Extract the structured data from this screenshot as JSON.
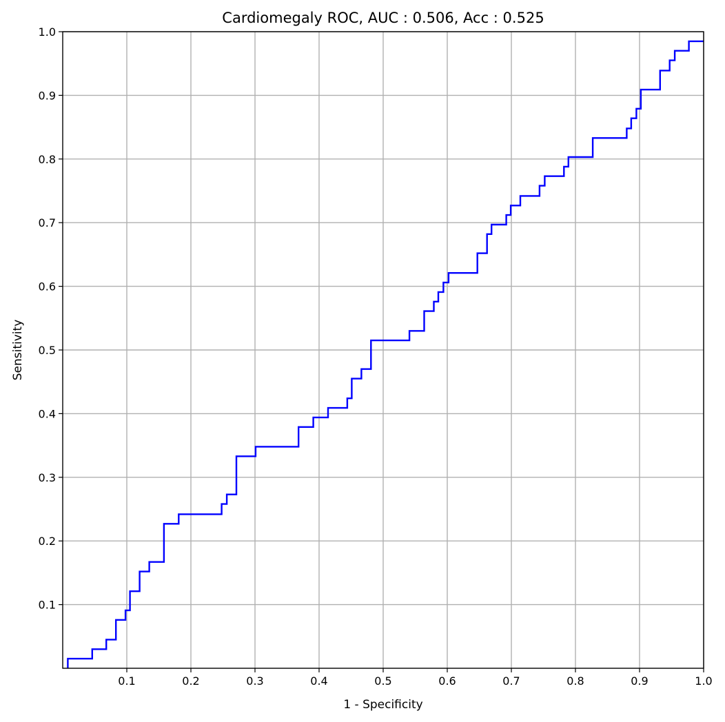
{
  "chart_data": {
    "type": "line",
    "title": "Cardiomegaly ROC, AUC : 0.506, Acc : 0.525",
    "xlabel": "1 - Specificity",
    "ylabel": "Sensitivity",
    "xlim": [
      0,
      1
    ],
    "ylim": [
      0,
      1
    ],
    "x_ticks": [
      0.1,
      0.2,
      0.3,
      0.4,
      0.5,
      0.6,
      0.7,
      0.8,
      0.9,
      1.0
    ],
    "x_tick_labels": [
      "0.1",
      "0.2",
      "0.3",
      "0.4",
      "0.5",
      "0.6",
      "0.7",
      "0.8",
      "0.9",
      "1.0"
    ],
    "y_ticks": [
      0.1,
      0.2,
      0.3,
      0.4,
      0.5,
      0.6,
      0.7,
      0.8,
      0.9,
      1.0
    ],
    "y_tick_labels": [
      "0.1",
      "0.2",
      "0.3",
      "0.4",
      "0.5",
      "0.6",
      "0.7",
      "0.8",
      "0.9",
      "1.0"
    ],
    "grid": true,
    "series": [
      {
        "color": "#0000ff",
        "step": true,
        "x": [
          0.008,
          0.008,
          0.046,
          0.046,
          0.068,
          0.068,
          0.083,
          0.083,
          0.098,
          0.098,
          0.105,
          0.105,
          0.12,
          0.12,
          0.135,
          0.135,
          0.158,
          0.158,
          0.181,
          0.181,
          0.248,
          0.248,
          0.256,
          0.256,
          0.271,
          0.271,
          0.301,
          0.301,
          0.368,
          0.368,
          0.391,
          0.391,
          0.414,
          0.414,
          0.444,
          0.444,
          0.451,
          0.451,
          0.466,
          0.466,
          0.481,
          0.481,
          0.541,
          0.541,
          0.564,
          0.564,
          0.579,
          0.579,
          0.586,
          0.586,
          0.594,
          0.594,
          0.602,
          0.602,
          0.647,
          0.647,
          0.662,
          0.662,
          0.669,
          0.669,
          0.692,
          0.692,
          0.699,
          0.699,
          0.714,
          0.714,
          0.744,
          0.744,
          0.752,
          0.752,
          0.782,
          0.782,
          0.789,
          0.789,
          0.827,
          0.827,
          0.88,
          0.88,
          0.887,
          0.887,
          0.895,
          0.895,
          0.902,
          0.902,
          0.932,
          0.932,
          0.947,
          0.947,
          0.955,
          0.955,
          0.977,
          0.977,
          1.0
        ],
        "y": [
          0.0,
          0.015,
          0.015,
          0.03,
          0.03,
          0.045,
          0.045,
          0.076,
          0.076,
          0.091,
          0.091,
          0.121,
          0.121,
          0.152,
          0.152,
          0.167,
          0.167,
          0.227,
          0.227,
          0.242,
          0.242,
          0.258,
          0.258,
          0.273,
          0.273,
          0.333,
          0.333,
          0.348,
          0.348,
          0.379,
          0.379,
          0.394,
          0.394,
          0.409,
          0.409,
          0.424,
          0.424,
          0.455,
          0.455,
          0.47,
          0.47,
          0.515,
          0.515,
          0.53,
          0.53,
          0.561,
          0.561,
          0.576,
          0.576,
          0.591,
          0.591,
          0.606,
          0.606,
          0.621,
          0.621,
          0.652,
          0.652,
          0.682,
          0.682,
          0.697,
          0.697,
          0.712,
          0.712,
          0.727,
          0.727,
          0.742,
          0.742,
          0.758,
          0.758,
          0.773,
          0.773,
          0.788,
          0.788,
          0.803,
          0.803,
          0.833,
          0.833,
          0.848,
          0.848,
          0.864,
          0.864,
          0.879,
          0.879,
          0.909,
          0.909,
          0.939,
          0.939,
          0.955,
          0.955,
          0.97,
          0.97,
          0.985,
          0.985
        ]
      }
    ]
  }
}
